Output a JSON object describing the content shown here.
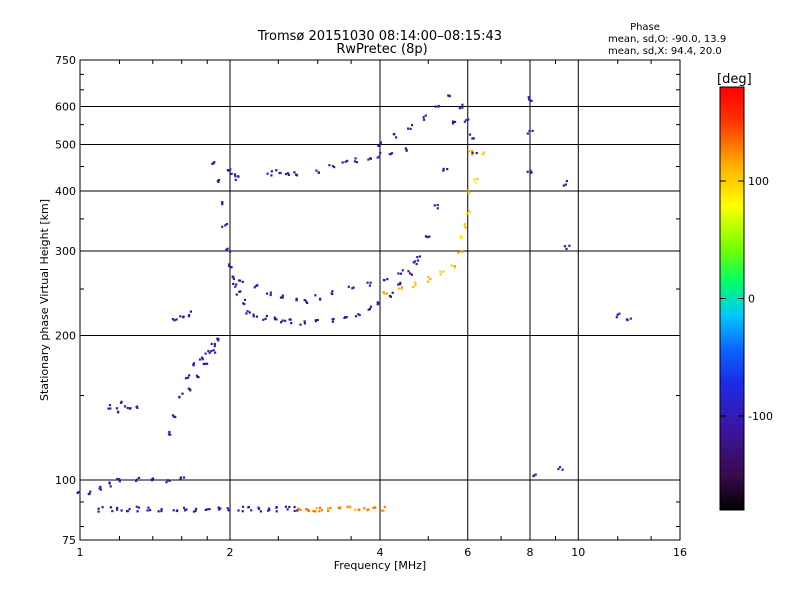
{
  "chart_data": {
    "type": "scatter",
    "title": "Tromsø 20151030 08:14:00–08:15:43",
    "subtitle": "RwPretec (8p)",
    "xlabel": "Frequency [MHz]",
    "ylabel": "Stationary phase Virtual Height [km]",
    "x_scale": "log",
    "y_scale": "log",
    "xlim": [
      1,
      16
    ],
    "ylim": [
      75,
      750
    ],
    "grid": true,
    "x_ticks": [
      {
        "value": 1,
        "label": "1"
      },
      {
        "value": 2,
        "label": "2"
      },
      {
        "value": 4,
        "label": "4"
      },
      {
        "value": 6,
        "label": "6"
      },
      {
        "value": 8,
        "label": "8"
      },
      {
        "value": 10,
        "label": "10"
      },
      {
        "value": 16,
        "label": "16"
      }
    ],
    "y_ticks": [
      {
        "value": 75,
        "label": "75"
      },
      {
        "value": 100,
        "label": "100"
      },
      {
        "value": 200,
        "label": "200"
      },
      {
        "value": 300,
        "label": "300"
      },
      {
        "value": 400,
        "label": "400"
      },
      {
        "value": 500,
        "label": "500"
      },
      {
        "value": 600,
        "label": "600"
      },
      {
        "value": 750,
        "label": "750"
      }
    ],
    "stats": {
      "heading": "Phase",
      "line_o": "mean, sd,O: -90.0, 13.9",
      "line_x": "mean, sd,X:  94.4, 20.0"
    },
    "colorbar": {
      "label": "[deg]",
      "range": [
        -180,
        180
      ],
      "ticks": [
        {
          "value": 100,
          "label": "100"
        },
        {
          "value": 0,
          "label": "0"
        },
        {
          "value": -100,
          "label": "-100"
        }
      ],
      "colormap": "rainbow"
    },
    "traces": [
      {
        "x": [
          1.0,
          1.04,
          1.09,
          1.15,
          1.2,
          1.3,
          1.4,
          1.5,
          1.6
        ],
        "y": [
          95,
          94,
          96,
          98,
          100,
          100,
          100,
          100,
          101
        ],
        "phase": -110
      },
      {
        "x": [
          1.1,
          1.15,
          1.2,
          1.25,
          1.3,
          1.38,
          1.45,
          1.55,
          1.62,
          1.7,
          1.8,
          1.9,
          2.0,
          2.1,
          2.2,
          2.3,
          2.4,
          2.5,
          2.6,
          2.7
        ],
        "y": [
          87,
          87,
          87,
          87,
          87,
          87,
          87,
          87,
          87,
          87,
          87,
          87,
          87,
          87,
          87,
          87,
          87,
          87,
          87,
          87
        ],
        "phase": -110
      },
      {
        "x": [
          2.75,
          2.85,
          2.95,
          3.05,
          3.15,
          3.3,
          3.45,
          3.6,
          3.75,
          3.9,
          4.05
        ],
        "y": [
          87,
          87,
          87,
          87,
          87,
          87,
          87,
          87,
          87,
          87,
          87
        ],
        "phase": 125
      },
      {
        "x": [
          1.14,
          1.18,
          1.22,
          1.26,
          1.3
        ],
        "y": [
          142,
          140,
          144,
          140,
          143
        ],
        "phase": -100
      },
      {
        "x": [
          1.5,
          1.55,
          1.6,
          1.65,
          1.7,
          1.75,
          1.8,
          1.85
        ],
        "y": [
          125,
          135,
          150,
          165,
          175,
          180,
          185,
          190
        ],
        "phase": -105
      },
      {
        "x": [
          1.65,
          1.72,
          1.78,
          1.85,
          1.9
        ],
        "y": [
          155,
          165,
          175,
          185,
          195
        ],
        "phase": -100
      },
      {
        "x": [
          1.55,
          1.6,
          1.65
        ],
        "y": [
          215,
          220,
          222
        ],
        "phase": -105
      },
      {
        "x": [
          1.85,
          1.88,
          1.92,
          1.95,
          1.98,
          2.0,
          2.03,
          2.05,
          2.08,
          2.12,
          2.18,
          2.25,
          2.35,
          2.45,
          2.55,
          2.65,
          2.8,
          3.0,
          3.2,
          3.4,
          3.6,
          3.8,
          4.0,
          4.2,
          4.4,
          4.6,
          4.8,
          5.0,
          5.2,
          5.4,
          5.6
        ],
        "y": [
          460,
          420,
          380,
          340,
          300,
          280,
          265,
          255,
          245,
          235,
          225,
          220,
          218,
          216,
          215,
          214,
          213,
          213,
          215,
          218,
          222,
          228,
          235,
          243,
          255,
          270,
          290,
          320,
          370,
          440,
          560
        ],
        "phase": -110
      },
      {
        "x": [
          2.1,
          2.25,
          2.4,
          2.55,
          2.7,
          2.85
        ],
        "y": [
          260,
          255,
          245,
          240,
          238,
          235
        ],
        "phase": -105
      },
      {
        "x": [
          3.0,
          3.2,
          3.5,
          3.8,
          4.1,
          4.4,
          4.7
        ],
        "y": [
          240,
          245,
          250,
          255,
          262,
          272,
          285
        ],
        "phase": -100
      },
      {
        "x": [
          2.0,
          2.03,
          2.06
        ],
        "y": [
          440,
          432,
          425
        ],
        "phase": -105
      },
      {
        "x": [
          2.4,
          2.5,
          2.6,
          2.7
        ],
        "y": [
          435,
          438,
          436,
          434
        ],
        "phase": -105
      },
      {
        "x": [
          3.0,
          3.2,
          3.4,
          3.6,
          3.8,
          4.0,
          4.2,
          4.5
        ],
        "y": [
          440,
          450,
          458,
          465,
          470,
          475,
          480,
          490
        ],
        "phase": -105
      },
      {
        "x": [
          4.0,
          4.3,
          4.6,
          4.9,
          5.2,
          5.5
        ],
        "y": [
          500,
          520,
          545,
          570,
          600,
          630
        ],
        "phase": -110
      },
      {
        "x": [
          4.1,
          4.4,
          4.7,
          5.0,
          5.3,
          5.6,
          5.8,
          5.9,
          6.0,
          6.1
        ],
        "y": [
          245,
          250,
          255,
          262,
          270,
          280,
          300,
          340,
          400,
          480
        ],
        "phase": 110
      },
      {
        "x": [
          5.8,
          6.0,
          6.2,
          6.4
        ],
        "y": [
          320,
          360,
          420,
          480
        ],
        "phase": 95
      },
      {
        "x": [
          5.8,
          5.95,
          6.1,
          6.2
        ],
        "y": [
          600,
          560,
          520,
          480
        ],
        "phase": -100
      },
      {
        "x": [
          8.0,
          8.0,
          8.0
        ],
        "y": [
          620,
          530,
          440
        ],
        "phase": -110
      },
      {
        "x": [
          9.4,
          9.5
        ],
        "y": [
          415,
          305
        ],
        "phase": -110
      },
      {
        "x": [
          12.0,
          12.6
        ],
        "y": [
          220,
          215
        ],
        "phase": -105
      },
      {
        "x": [
          8.2,
          9.2
        ],
        "y": [
          103,
          106
        ],
        "phase": -100
      }
    ]
  }
}
